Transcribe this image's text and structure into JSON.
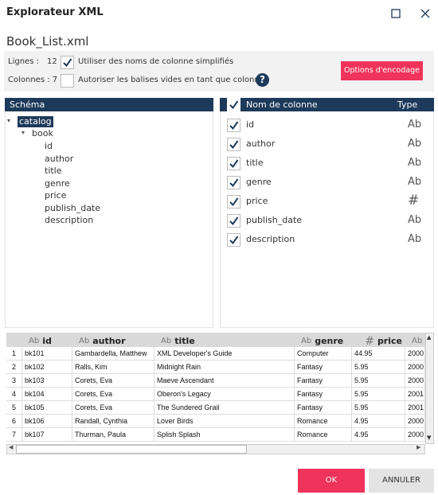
{
  "window": {
    "title": "Explorateur XML"
  },
  "file_name": "Book_List.xml",
  "options": {
    "rows_label": "Lignes :",
    "rows_value": "12",
    "simplified_names_label": "Utiliser des noms de colonne simplifiés",
    "simplified_names_checked": true,
    "columns_label": "Colonnes : 7",
    "empty_tags_label": "Autoriser les balises vides en tant que colonnes",
    "empty_tags_checked": false,
    "help": "?",
    "encoding_button": "Options d'encodage"
  },
  "schema": {
    "header": "Schéma",
    "root": "catalog",
    "element": "book",
    "children": [
      "id",
      "author",
      "title",
      "genre",
      "price",
      "publish_date",
      "description"
    ]
  },
  "columns": {
    "header_name": "Nom de colonne",
    "header_type": "Type",
    "all_checked": true,
    "rows": [
      {
        "name": "id",
        "type": "Ab",
        "checked": true
      },
      {
        "name": "author",
        "type": "Ab",
        "checked": true
      },
      {
        "name": "title",
        "type": "Ab",
        "checked": true
      },
      {
        "name": "genre",
        "type": "Ab",
        "checked": true
      },
      {
        "name": "price",
        "type": "#",
        "checked": true
      },
      {
        "name": "publish_date",
        "type": "Ab",
        "checked": true
      },
      {
        "name": "description",
        "type": "Ab",
        "checked": true
      }
    ]
  },
  "preview": {
    "headers": [
      {
        "type": "Ab",
        "name": "id"
      },
      {
        "type": "Ab",
        "name": "author"
      },
      {
        "type": "Ab",
        "name": "title"
      },
      {
        "type": "Ab",
        "name": "genre"
      },
      {
        "type": "#",
        "name": "price"
      },
      {
        "type": "Ab"
      }
    ],
    "rows": [
      [
        "1",
        "bk101",
        "Gambardella, Matthew",
        "XML Developer's Guide",
        "Computer",
        "44.95",
        "2000"
      ],
      [
        "2",
        "bk102",
        "Ralls, Kim",
        "Midnight Rain",
        "Fantasy",
        "5.95",
        "2000"
      ],
      [
        "3",
        "bk103",
        "Corets, Eva",
        "Maeve Ascendant",
        "Fantasy",
        "5.95",
        "2000"
      ],
      [
        "4",
        "bk104",
        "Corets, Eva",
        "Oberon's Legacy",
        "Fantasy",
        "5.95",
        "2001"
      ],
      [
        "5",
        "bk105",
        "Corets, Eva",
        "The Sundered Grail",
        "Fantasy",
        "5.95",
        "2001"
      ],
      [
        "6",
        "bk106",
        "Randall, Cynthia",
        "Lover Birds",
        "Romance",
        "4.95",
        "2000"
      ],
      [
        "7",
        "bk107",
        "Thurman, Paula",
        "Splish Splash",
        "Romance",
        "4.95",
        "2000"
      ]
    ]
  },
  "buttons": {
    "ok": "OK",
    "cancel": "ANNULER"
  }
}
